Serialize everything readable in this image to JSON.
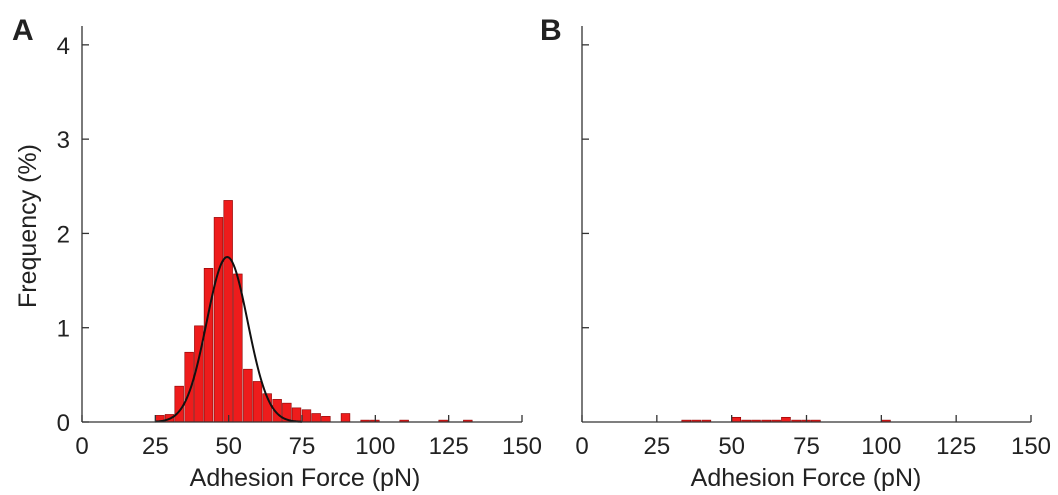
{
  "chart_data": [
    {
      "panel": "A",
      "type": "bar",
      "bin_width": 3.33,
      "x": [
        26.7,
        30.0,
        33.3,
        36.7,
        40.0,
        43.3,
        46.7,
        50.0,
        53.3,
        56.7,
        60.0,
        63.3,
        66.7,
        70.0,
        73.3,
        76.7,
        80.0,
        83.3,
        90.0,
        96.7,
        100.0,
        110.0,
        123.3,
        131.7
      ],
      "values": [
        0.07,
        0.08,
        0.38,
        0.74,
        1.02,
        1.63,
        2.17,
        2.35,
        1.57,
        0.56,
        0.43,
        0.3,
        0.24,
        0.2,
        0.15,
        0.13,
        0.09,
        0.06,
        0.09,
        0.02,
        0.02,
        0.02,
        0.02,
        0.02
      ],
      "fit": {
        "type": "gaussian",
        "peak": 1.75,
        "mean": 49.5,
        "sd": 7.0,
        "range": [
          25,
          75
        ]
      },
      "xlabel": "Adhesion Force (pN)",
      "ylabel": "Frequency (%)",
      "xlim": [
        0,
        150
      ],
      "ylim": [
        0,
        4.2
      ],
      "xticks": [
        0,
        25,
        50,
        75,
        100,
        125,
        150
      ],
      "yticks": [
        0,
        1,
        2,
        3,
        4
      ]
    },
    {
      "panel": "B",
      "type": "bar",
      "bin_width": 3.33,
      "x": [
        35.0,
        38.3,
        41.7,
        51.7,
        55.0,
        58.3,
        61.7,
        65.0,
        68.3,
        71.7,
        75.0,
        78.3,
        101.7
      ],
      "values": [
        0.02,
        0.02,
        0.02,
        0.05,
        0.02,
        0.02,
        0.02,
        0.02,
        0.05,
        0.02,
        0.02,
        0.02,
        0.02
      ],
      "xlabel": "Adhesion Force (pN)",
      "ylabel": "",
      "xlim": [
        0,
        150
      ],
      "ylim": [
        0,
        4.2
      ],
      "xticks": [
        0,
        25,
        50,
        75,
        100,
        125,
        150
      ],
      "yticks": []
    }
  ],
  "colors": {
    "bar": "#ee1c1c",
    "bar_edge": "#8a0000",
    "curve": "#111111",
    "axis": "#333333"
  }
}
